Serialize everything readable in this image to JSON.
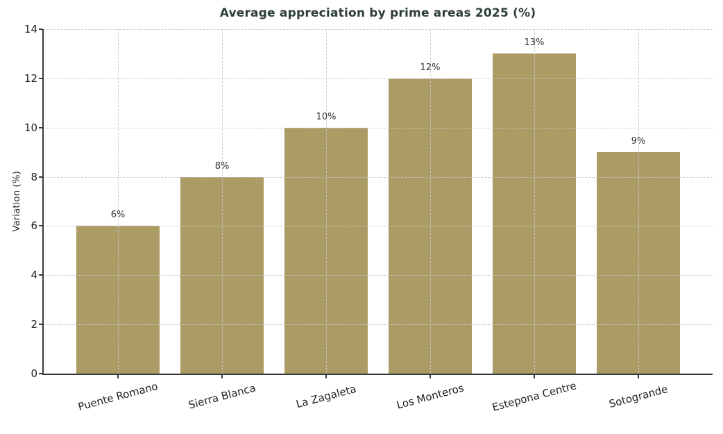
{
  "chart_data": {
    "type": "bar",
    "title": "Average appreciation by prime areas 2025 (%)",
    "xlabel": "",
    "ylabel": "Variation (%)",
    "categories": [
      "Puente Romano",
      "Sierra Blanca",
      "La Zagaleta",
      "Los Monteros",
      "Estepona Centre",
      "Sotogrande"
    ],
    "values": [
      6,
      8,
      10,
      12,
      13,
      9
    ],
    "bar_labels": [
      "6%",
      "8%",
      "10%",
      "12%",
      "13%",
      "9%"
    ],
    "ylim": [
      0,
      14
    ],
    "yticks": [
      0,
      2,
      4,
      6,
      8,
      10,
      12,
      14
    ],
    "grid": "dashed, both axes, drawn above bars",
    "legend": "none",
    "colors": {
      "bar": "#ab9b64",
      "title": "#2d3e3a",
      "axis": "#3a3a3a",
      "tick_label": "#1f1f1f",
      "value_label": "#333333",
      "grid": "#c7c7c7",
      "background": "#ffffff"
    }
  }
}
